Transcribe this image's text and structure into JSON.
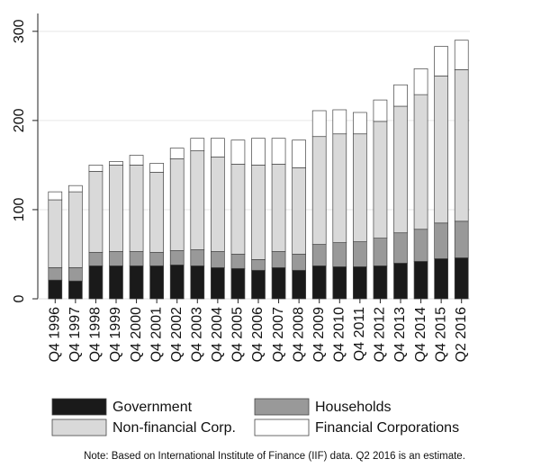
{
  "chart_data": {
    "type": "stacked-bar",
    "categories": [
      "Q4 1996",
      "Q4 1997",
      "Q4 1998",
      "Q4 1999",
      "Q4 2000",
      "Q4 2001",
      "Q4 2002",
      "Q4 2003",
      "Q4 2004",
      "Q4 2005",
      "Q4 2006",
      "Q4 2007",
      "Q4 2008",
      "Q4 2009",
      "Q4 2010",
      "Q4 2011",
      "Q4 2012",
      "Q4 2013",
      "Q4 2014",
      "Q4 2015",
      "Q2 2016"
    ],
    "series": [
      {
        "name": "Government",
        "color": "#1a1a1a",
        "values": [
          21,
          20,
          37,
          37,
          37,
          37,
          38,
          37,
          35,
          34,
          32,
          35,
          32,
          37,
          36,
          36,
          37,
          40,
          42,
          45,
          46
        ]
      },
      {
        "name": "Households",
        "color": "#999999",
        "values": [
          14,
          15,
          15,
          16,
          16,
          15,
          16,
          18,
          18,
          16,
          12,
          18,
          18,
          24,
          27,
          28,
          31,
          34,
          36,
          40,
          41
        ]
      },
      {
        "name": "Non-financial Corp.",
        "color": "#d9d9d9",
        "values": [
          76,
          85,
          91,
          97,
          97,
          90,
          103,
          111,
          106,
          101,
          106,
          98,
          97,
          121,
          122,
          121,
          131,
          142,
          151,
          165,
          170
        ]
      },
      {
        "name": "Financial Corporations",
        "color": "#ffffff",
        "values": [
          9,
          7,
          7,
          4,
          11,
          10,
          12,
          14,
          21,
          27,
          30,
          29,
          31,
          29,
          27,
          24,
          24,
          24,
          29,
          33,
          33
        ]
      }
    ],
    "ylim": [
      0,
      320
    ],
    "yticks": [
      0,
      100,
      200,
      300
    ],
    "grid": true,
    "legend": "bottom",
    "note": "Note: Based on International Institute of Finance (IIF) data. Q2 2016 is an estimate."
  }
}
